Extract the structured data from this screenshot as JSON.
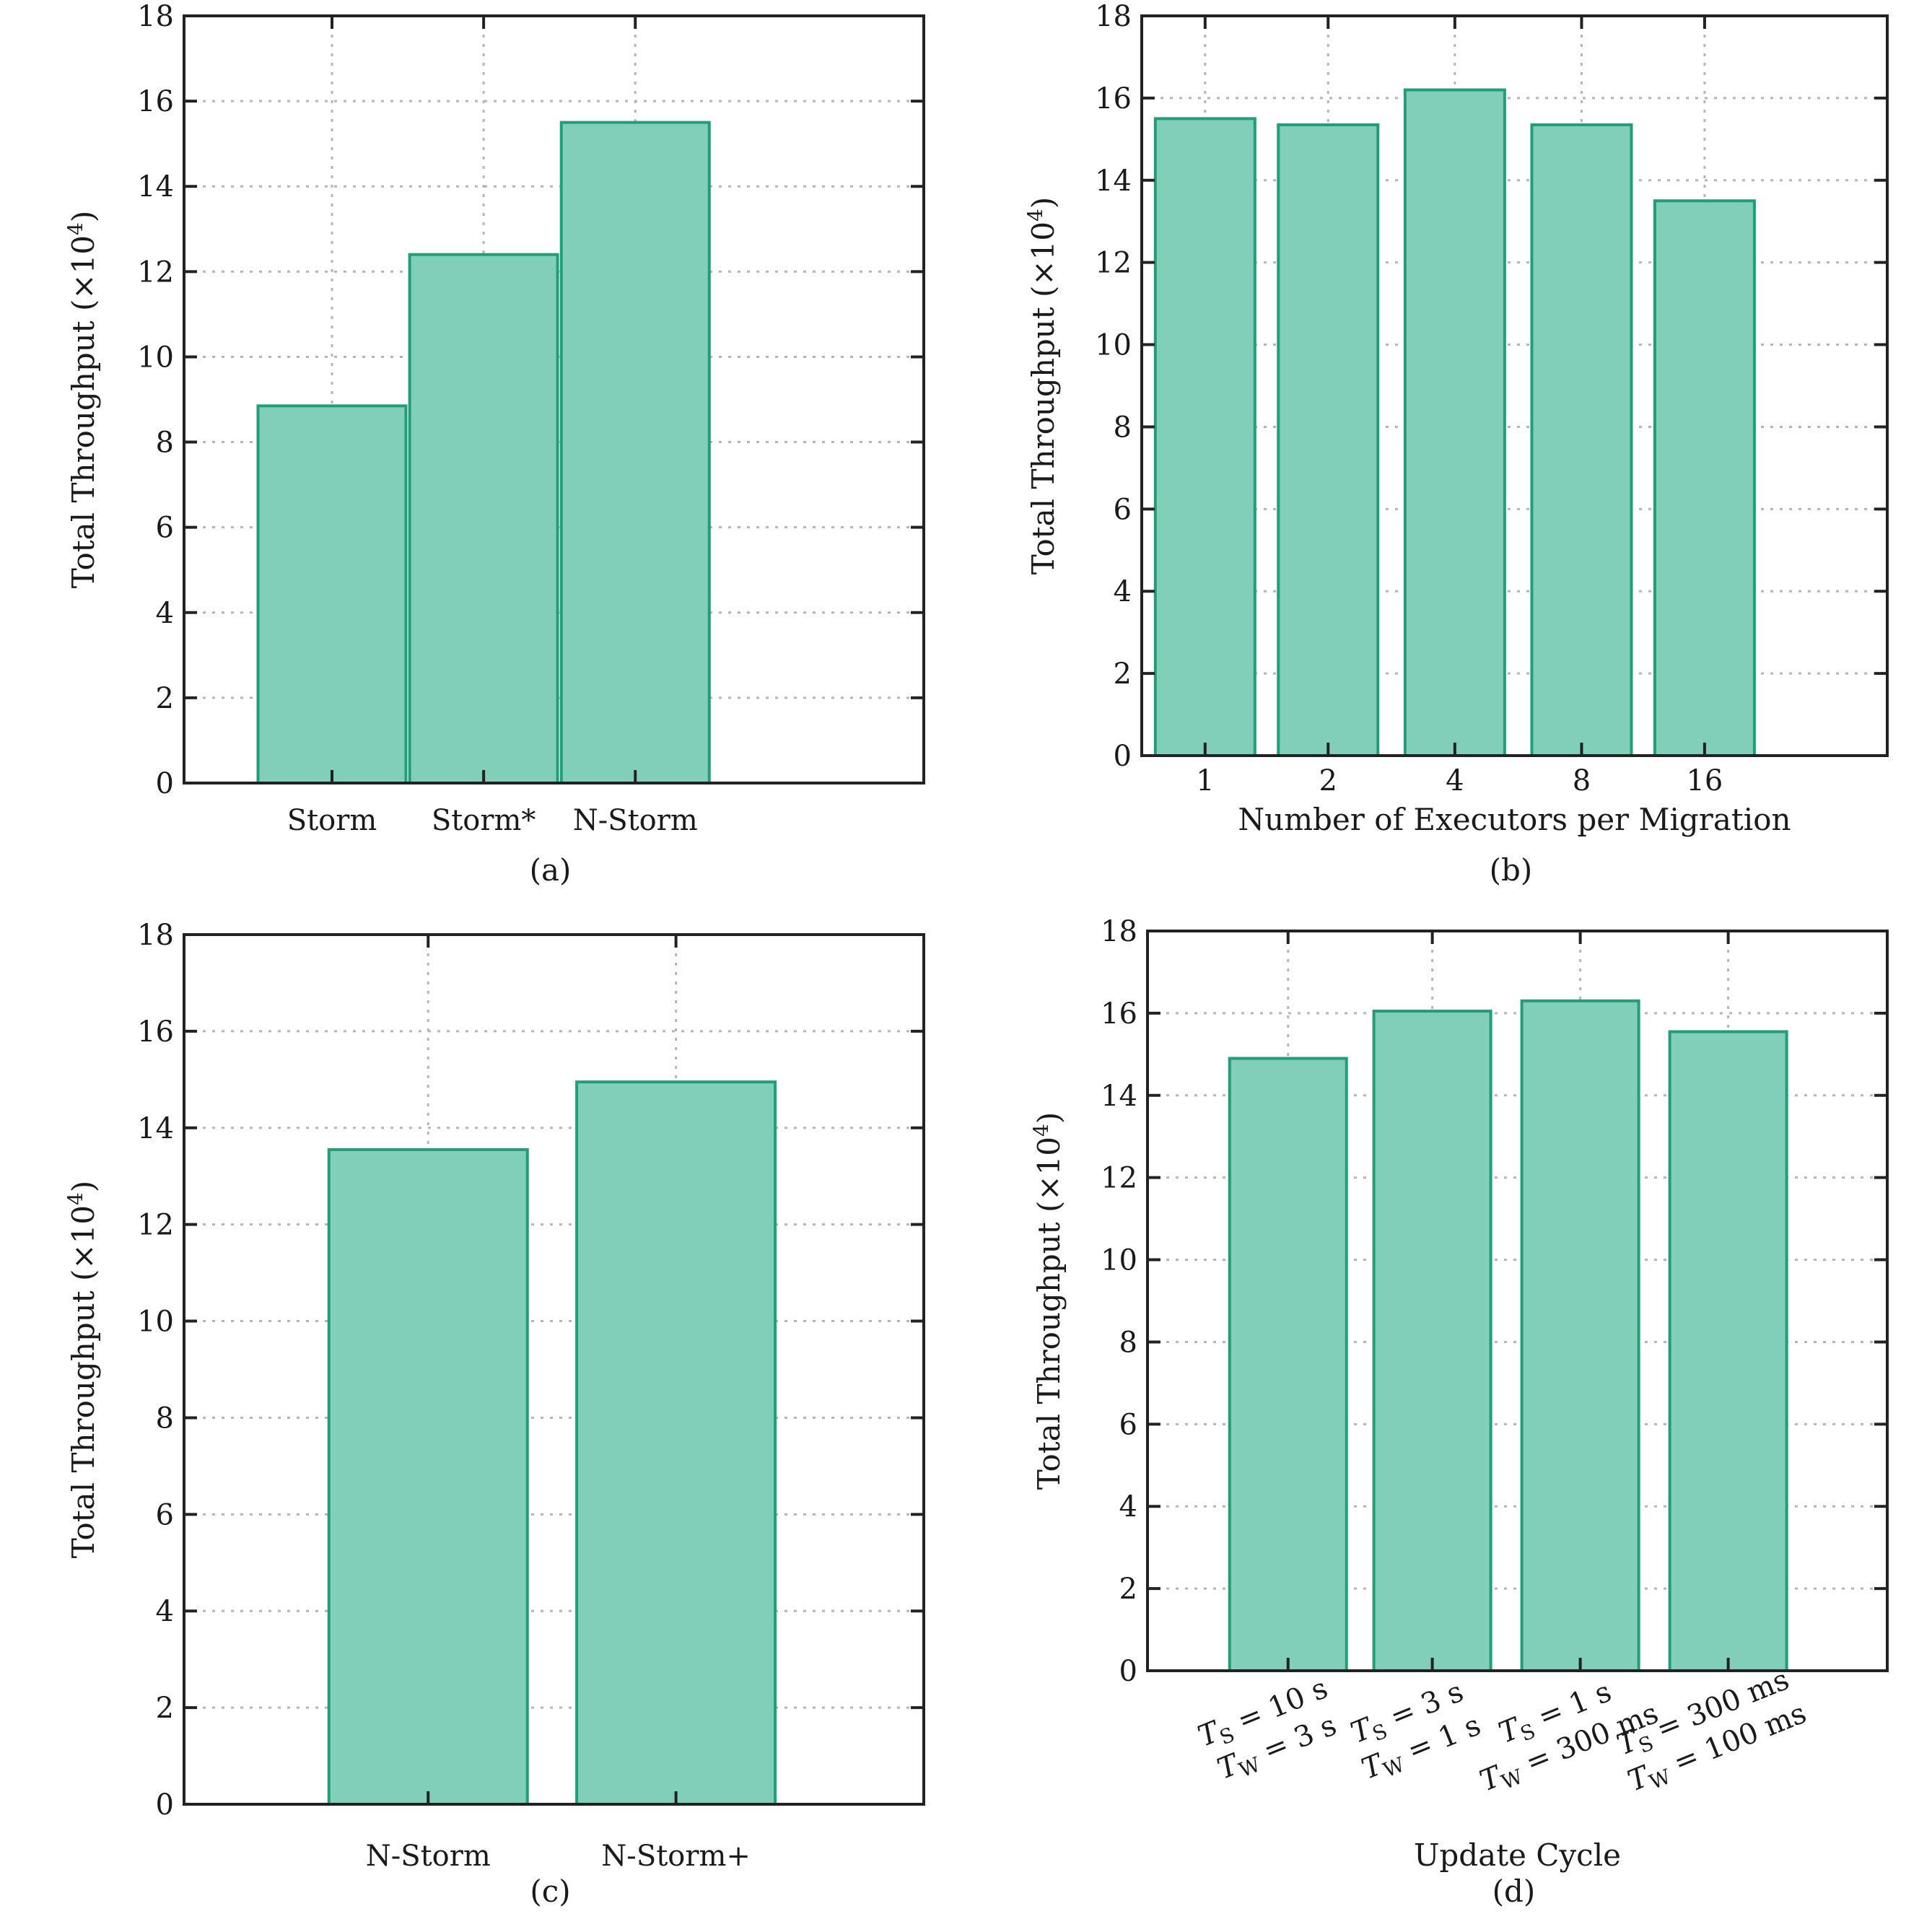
{
  "chart_data": [
    {
      "panel": "(a)",
      "type": "bar",
      "categories": [
        "Storm",
        "Storm*",
        "N-Storm"
      ],
      "values": [
        8.85,
        12.4,
        15.5
      ],
      "ylabel": "Total Throughput (×10",
      "ylabel_sup": "4",
      "ylabel_end": ")",
      "xlabel": "",
      "ylim": [
        0,
        18
      ],
      "yticks": [
        "0",
        "2",
        "4",
        "6",
        "8",
        "10",
        "12",
        "14",
        "16",
        "18"
      ],
      "grid": true
    },
    {
      "panel": "(b)",
      "type": "bar",
      "categories": [
        "1",
        "2",
        "4",
        "8",
        "16"
      ],
      "values": [
        15.5,
        15.35,
        16.2,
        15.35,
        13.5
      ],
      "ylabel": "Total Throughput (×10",
      "ylabel_sup": "4",
      "ylabel_end": ")",
      "xlabel": "Number of Executors per Migration",
      "ylim": [
        0,
        18
      ],
      "yticks": [
        "0",
        "2",
        "4",
        "6",
        "8",
        "10",
        "12",
        "14",
        "16",
        "18"
      ],
      "grid": true
    },
    {
      "panel": "(c)",
      "type": "bar",
      "categories": [
        "N-Storm",
        "N-Storm+"
      ],
      "values": [
        13.55,
        14.95
      ],
      "ylabel": "Total Throughput (×10",
      "ylabel_sup": "4",
      "ylabel_end": ")",
      "xlabel": "",
      "ylim": [
        0,
        18
      ],
      "yticks": [
        "0",
        "2",
        "4",
        "6",
        "8",
        "10",
        "12",
        "14",
        "16",
        "18"
      ],
      "grid": true
    },
    {
      "panel": "(d)",
      "type": "bar",
      "categories": [
        [
          "TS = 10 s",
          "TW = 3 s"
        ],
        [
          "TS = 3 s",
          "TW = 1 s"
        ],
        [
          "TS = 1 s",
          "TW = 300 ms"
        ],
        [
          "TS = 300 ms",
          "TW = 100 ms"
        ]
      ],
      "category_parts": [
        [
          {
            "sub": "S",
            "rest": " = 10 s"
          },
          {
            "sub": "W",
            "rest": " = 3 s"
          }
        ],
        [
          {
            "sub": "S",
            "rest": " = 3 s"
          },
          {
            "sub": "W",
            "rest": " = 1 s"
          }
        ],
        [
          {
            "sub": "S",
            "rest": " = 1 s"
          },
          {
            "sub": "W",
            "rest": " = 300 ms"
          }
        ],
        [
          {
            "sub": "S",
            "rest": " = 300 ms"
          },
          {
            "sub": "W",
            "rest": " = 100 ms"
          }
        ]
      ],
      "values": [
        14.9,
        16.05,
        16.3,
        15.55
      ],
      "ylabel": "Total Throughput (×10",
      "ylabel_sup": "4",
      "ylabel_end": ")",
      "xlabel": "Update Cycle",
      "ylim": [
        0,
        18
      ],
      "yticks": [
        "0",
        "2",
        "4",
        "6",
        "8",
        "10",
        "12",
        "14",
        "16",
        "18"
      ],
      "grid": true
    }
  ],
  "colors": {
    "bar_fill": "#81cfb8",
    "bar_stroke": "#1f9e78",
    "axis": "#222222",
    "grid": "#b5b5b5"
  }
}
